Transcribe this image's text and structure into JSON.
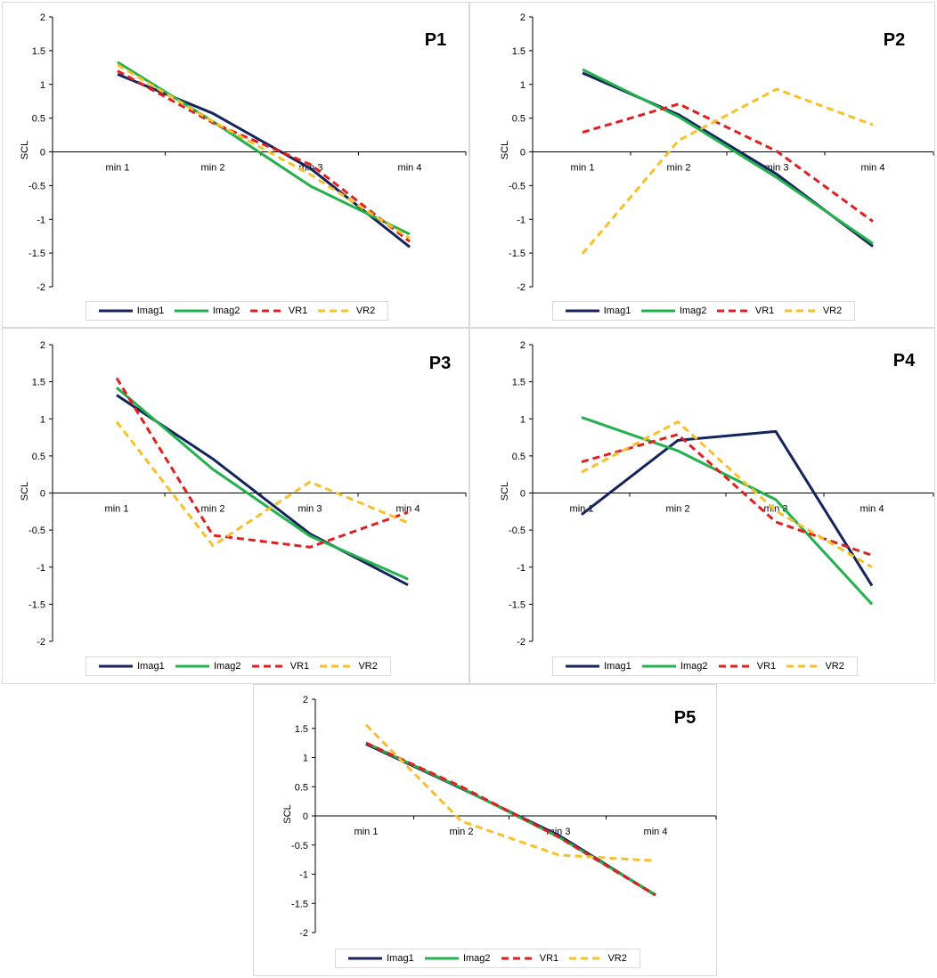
{
  "colors": {
    "imag1": "#14245c",
    "imag2": "#22b14c",
    "vr1": "#e02020",
    "vr2": "#f7c02a",
    "axis": "#000000",
    "frame": "#d9d9d9"
  },
  "chart_data": [
    {
      "type": "line",
      "title": "P1",
      "ylabel": "SCL",
      "categories": [
        "min 1",
        "min 2",
        "min 3",
        "min 4"
      ],
      "ylim": [
        -2,
        2
      ],
      "yticks": [
        "2",
        "1.5",
        "1",
        "0.5",
        "0",
        "-0.5",
        "-1",
        "-1.5",
        "-2"
      ],
      "legend_position": "bottom",
      "series": [
        {
          "name": "Imag1",
          "values": [
            1.15,
            0.57,
            -0.25,
            -1.41
          ]
        },
        {
          "name": "Imag2",
          "values": [
            1.33,
            0.45,
            -0.51,
            -1.22
          ]
        },
        {
          "name": "VR1",
          "values": [
            1.2,
            0.43,
            -0.19,
            -1.33
          ]
        },
        {
          "name": "VR2",
          "values": [
            1.29,
            0.45,
            -0.34,
            -1.28
          ]
        }
      ]
    },
    {
      "type": "line",
      "title": "P2",
      "ylabel": "SCL",
      "categories": [
        "min 1",
        "min 2",
        "min 3",
        "min 4"
      ],
      "ylim": [
        -2,
        2
      ],
      "yticks": [
        "2",
        "1.5",
        "1",
        "0.5",
        "0",
        "-0.5",
        "-1",
        "-1.5",
        "-2"
      ],
      "legend_position": "bottom",
      "series": [
        {
          "name": "Imag1",
          "values": [
            1.17,
            0.55,
            -0.33,
            -1.4
          ]
        },
        {
          "name": "Imag2",
          "values": [
            1.22,
            0.52,
            -0.38,
            -1.36
          ]
        },
        {
          "name": "VR1",
          "values": [
            0.29,
            0.71,
            0.01,
            -1.03
          ]
        },
        {
          "name": "VR2",
          "values": [
            -1.51,
            0.17,
            0.93,
            0.4
          ]
        }
      ]
    },
    {
      "type": "line",
      "title": "P3",
      "ylabel": "SCL",
      "categories": [
        "min 1",
        "min 2",
        "min 3",
        "min 4"
      ],
      "ylim": [
        -2,
        2
      ],
      "yticks": [
        "2",
        "1.5",
        "1",
        "0.5",
        "0",
        "-0.5",
        "-1",
        "-1.5",
        "-2"
      ],
      "legend_position": "bottom",
      "series": [
        {
          "name": "Imag1",
          "values": [
            1.32,
            0.46,
            -0.55,
            -1.24
          ]
        },
        {
          "name": "Imag2",
          "values": [
            1.42,
            0.32,
            -0.58,
            -1.16
          ]
        },
        {
          "name": "VR1",
          "values": [
            1.55,
            -0.57,
            -0.73,
            -0.26
          ]
        },
        {
          "name": "VR2",
          "values": [
            0.96,
            -0.71,
            0.15,
            -0.4
          ]
        }
      ]
    },
    {
      "type": "line",
      "title": "P4",
      "ylabel": "SCL",
      "categories": [
        "min 1",
        "min 2",
        "min 3",
        "min 4"
      ],
      "ylim": [
        -2,
        2
      ],
      "yticks": [
        "2",
        "1.5",
        "1",
        "0.5",
        "0",
        "-0.5",
        "-1",
        "-1.5",
        "-2"
      ],
      "legend_position": "bottom",
      "series": [
        {
          "name": "Imag1",
          "values": [
            -0.29,
            0.71,
            0.83,
            -1.25
          ]
        },
        {
          "name": "Imag2",
          "values": [
            1.02,
            0.57,
            -0.09,
            -1.5
          ]
        },
        {
          "name": "VR1",
          "values": [
            0.42,
            0.79,
            -0.39,
            -0.84
          ]
        },
        {
          "name": "VR2",
          "values": [
            0.28,
            0.96,
            -0.24,
            -1.0
          ]
        }
      ]
    },
    {
      "type": "line",
      "title": "P5",
      "ylabel": "SCL",
      "categories": [
        "min 1",
        "min 2",
        "min 3",
        "min 4"
      ],
      "ylim": [
        -2,
        2
      ],
      "yticks": [
        "2",
        "1.5",
        "1",
        "0.5",
        "0",
        "-0.5",
        "-1",
        "-1.5",
        "-2"
      ],
      "legend_position": "bottom",
      "series": [
        {
          "name": "Imag1",
          "values": [
            1.23,
            0.47,
            -0.33,
            -1.36
          ]
        },
        {
          "name": "Imag2",
          "values": [
            1.25,
            0.48,
            -0.36,
            -1.35
          ]
        },
        {
          "name": "VR1",
          "values": [
            1.25,
            0.5,
            -0.36,
            -1.36
          ]
        },
        {
          "name": "VR2",
          "values": [
            1.56,
            -0.09,
            -0.67,
            -0.77
          ]
        }
      ]
    }
  ]
}
